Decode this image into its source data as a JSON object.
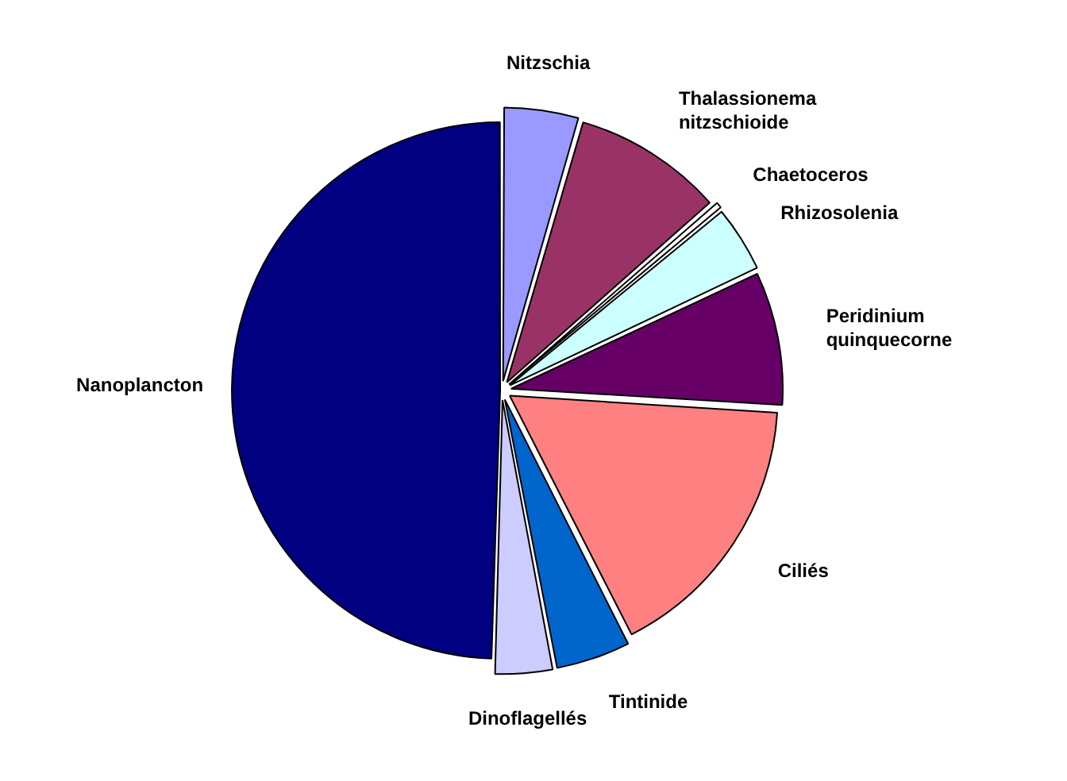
{
  "chart_data": {
    "type": "pie",
    "categories": [
      "Nitzschia",
      "Thalassionema nitzschioide",
      "Chaetoceros",
      "Rhizosolenia",
      "Peridinium quinquecorne",
      "Ciliés",
      "Tintinide",
      "Dinoflagellés",
      "Nanoplancton"
    ],
    "values": [
      4.5,
      9,
      0.5,
      4,
      8,
      16.5,
      4.5,
      3.5,
      49.5
    ],
    "colors": [
      "#9999ff",
      "#993366",
      "#ffffff",
      "#ccffff",
      "#660066",
      "#ff8080",
      "#0066cc",
      "#ccccff",
      "#000080"
    ],
    "legend": false
  }
}
